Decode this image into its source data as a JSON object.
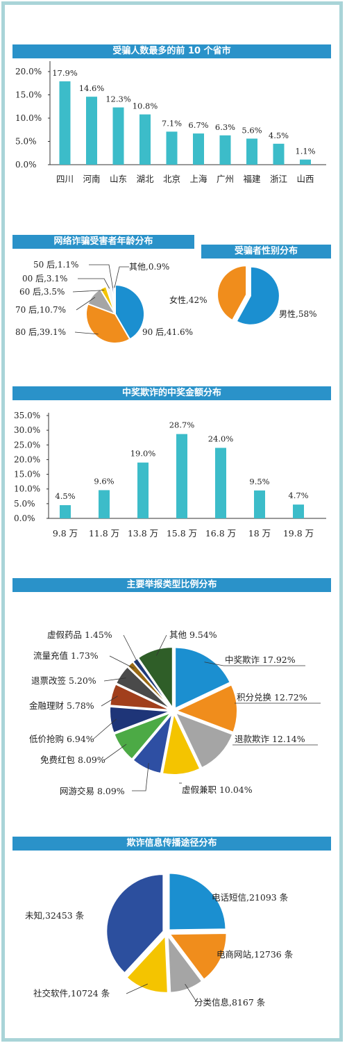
{
  "colors": {
    "bar": "#3cbcc9",
    "title_bg": "#2a92c9",
    "frame": "#a9d4d8"
  },
  "sections": {
    "provinces_title": "受骗人数最多的前 10 个省市",
    "age_title": "网络诈骗受害者年龄分布",
    "gender_title": "受骗者性别分布",
    "prize_title": "中奖欺诈的中奖金额分布",
    "report_title": "主要举报类型比例分布",
    "channel_title": "欺诈信息传播途径分布"
  },
  "chart_data": [
    {
      "type": "bar",
      "title": "受骗人数最多的前 10 个省市",
      "categories": [
        "四川",
        "河南",
        "山东",
        "湖北",
        "北京",
        "上海",
        "广州",
        "福建",
        "浙江",
        "山西"
      ],
      "values": [
        17.9,
        14.6,
        12.3,
        10.8,
        7.1,
        6.7,
        6.3,
        5.6,
        4.5,
        1.1
      ],
      "value_labels": [
        "17.9%",
        "14.6%",
        "12.3%",
        "10.8%",
        "7.1%",
        "6.7%",
        "6.3%",
        "5.6%",
        "4.5%",
        "1.1%"
      ],
      "yticks": [
        "20.0%",
        "15.0%",
        "10.0%",
        "5.0%",
        "0.0%"
      ],
      "ylim": [
        0,
        20
      ]
    },
    {
      "type": "pie",
      "title": "网络诈骗受害者年龄分布",
      "slices": [
        {
          "label": "90 后,41.6%",
          "value": 41.6,
          "color": "#1b8fd0"
        },
        {
          "label": "80 后,39.1%",
          "value": 39.1,
          "color": "#f08d1c"
        },
        {
          "label": "70 后,10.7%",
          "value": 10.7,
          "color": "#a5a5a5"
        },
        {
          "label": "60 后,3.5%",
          "value": 3.5,
          "color": "#f4c400"
        },
        {
          "label": "00 后,3.1%",
          "value": 3.1,
          "color": "#f6f6f6"
        },
        {
          "label": "50 后,1.1%",
          "value": 1.1,
          "color": "#2c3e8c"
        },
        {
          "label": "其他,0.9%",
          "value": 0.9,
          "color": "#555555"
        }
      ]
    },
    {
      "type": "pie",
      "title": "受骗者性别分布",
      "slices": [
        {
          "label": "男性,58%",
          "value": 58,
          "color": "#1b8fd0"
        },
        {
          "label": "女性,42%",
          "value": 42,
          "color": "#f08d1c"
        }
      ]
    },
    {
      "type": "bar",
      "title": "中奖欺诈的中奖金额分布",
      "categories": [
        "9.8 万",
        "11.8 万",
        "13.8 万",
        "15.8 万",
        "16.8 万",
        "18 万",
        "19.8 万"
      ],
      "values": [
        4.5,
        9.6,
        19.0,
        28.7,
        24.0,
        9.5,
        4.7
      ],
      "value_labels": [
        "4.5%",
        "9.6%",
        "19.0%",
        "28.7%",
        "24.0%",
        "9.5%",
        "4.7%"
      ],
      "yticks": [
        "35.0%",
        "30.0%",
        "25.0%",
        "20.0%",
        "15.0%",
        "10.0%",
        "5.0%",
        "0.0%"
      ],
      "ylim": [
        0,
        35
      ]
    },
    {
      "type": "pie",
      "title": "主要举报类型比例分布",
      "slices": [
        {
          "label": "中奖欺诈 17.92%",
          "value": 17.92,
          "color": "#1b8fd0"
        },
        {
          "label": "积分兑换 12.72%",
          "value": 12.72,
          "color": "#f08d1c"
        },
        {
          "label": "退款欺诈 12.14%",
          "value": 12.14,
          "color": "#a5a5a5"
        },
        {
          "label": "虚假兼职 10.04%",
          "value": 10.04,
          "color": "#f4c400"
        },
        {
          "label": "网游交易 8.09%",
          "value": 8.09,
          "color": "#2e4fa3"
        },
        {
          "label": "免费红包 8.09%",
          "value": 8.09,
          "color": "#4caa45"
        },
        {
          "label": "低价抢购 6.94%",
          "value": 6.94,
          "color": "#1e3578"
        },
        {
          "label": "金融理财 5.78%",
          "value": 5.78,
          "color": "#a13f1c"
        },
        {
          "label": "退票改签 5.20%",
          "value": 5.2,
          "color": "#4a4a4a"
        },
        {
          "label": "流量充值 1.73%",
          "value": 1.73,
          "color": "#9a6a14"
        },
        {
          "label": "虚假药品 1.45%",
          "value": 1.45,
          "color": "#203a78"
        },
        {
          "label": "其他 9.54%",
          "value": 9.54,
          "color": "#2f5e28"
        }
      ]
    },
    {
      "type": "pie",
      "title": "欺诈信息传播途径分布",
      "slices": [
        {
          "label": "电话短信,21093 条",
          "value": 21093,
          "color": "#1b8fd0"
        },
        {
          "label": "电商网站,12736 条",
          "value": 12736,
          "color": "#f08d1c"
        },
        {
          "label": "分类信息,8167 条",
          "value": 8167,
          "color": "#a5a5a5"
        },
        {
          "label": "社交软件,10724 条",
          "value": 10724,
          "color": "#f4c400"
        },
        {
          "label": "未知,32453 条",
          "value": 32453,
          "color": "#2c4f9e"
        }
      ]
    }
  ]
}
